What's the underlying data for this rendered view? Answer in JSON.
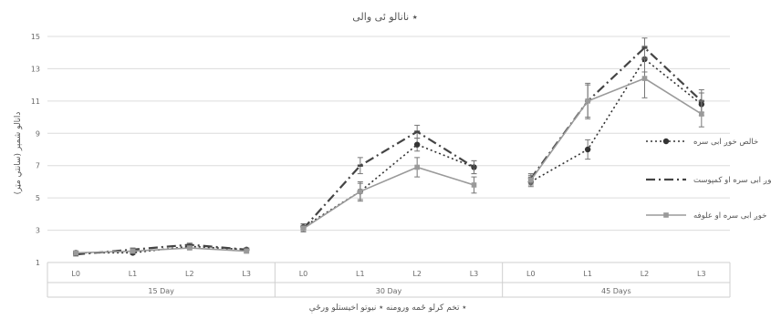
{
  "chart_data": {
    "type": "line",
    "title": "٭ نانالو ئی والی",
    "xlabel": "٭ تخم کرلو ځمه ورومنه ٭ نیوتو اخیستلو ورځې",
    "ylabel": "دانالو شمېر (سانتي مټر)",
    "ylim": [
      1,
      15
    ],
    "yticks": [
      1,
      3,
      5,
      7,
      9,
      11,
      13,
      15
    ],
    "grid": true,
    "legend_position": "right",
    "groups": [
      {
        "label": "15 Day",
        "categories": [
          "L0",
          "L1",
          "L2",
          "L3"
        ]
      },
      {
        "label": "30 Day",
        "categories": [
          "L0",
          "L1",
          "L2",
          "L3"
        ]
      },
      {
        "label": "45 Days",
        "categories": [
          "L0",
          "L1",
          "L2",
          "L3"
        ]
      }
    ],
    "series": [
      {
        "name": "خالص خوږ ابی سره",
        "style": "dotted",
        "marker": "circle",
        "color": "#333333",
        "values": [
          [
            1.6,
            1.6,
            2.0,
            1.8
          ],
          [
            3.2,
            5.4,
            8.3,
            6.9
          ],
          [
            6.0,
            8.0,
            13.6,
            10.8
          ]
        ],
        "errors": [
          [
            0.1,
            0.1,
            0.1,
            0.1
          ],
          [
            0.2,
            0.5,
            0.4,
            0.4
          ],
          [
            0.3,
            0.6,
            0.8,
            0.7
          ]
        ]
      },
      {
        "name": "خوږ ابی سره او کمپوست",
        "style": "dashdot",
        "marker": "dash",
        "color": "#444444",
        "values": [
          [
            1.5,
            1.8,
            2.1,
            1.8
          ],
          [
            3.1,
            7.0,
            9.1,
            6.9
          ],
          [
            6.2,
            11.0,
            14.3,
            11.0
          ]
        ],
        "errors": [
          [
            0.1,
            0.1,
            0.1,
            0.1
          ],
          [
            0.2,
            0.5,
            0.4,
            0.4
          ],
          [
            0.3,
            1.0,
            0.6,
            0.7
          ]
        ]
      },
      {
        "name": "خوږ ابی سره او علوفه",
        "style": "solid",
        "marker": "square",
        "color": "#9a9a9a",
        "values": [
          [
            1.6,
            1.7,
            1.9,
            1.7
          ],
          [
            3.1,
            5.4,
            6.9,
            5.8
          ],
          [
            6.1,
            11.0,
            12.4,
            10.2
          ]
        ],
        "errors": [
          [
            0.1,
            0.1,
            0.1,
            0.1
          ],
          [
            0.2,
            0.6,
            0.6,
            0.5
          ],
          [
            0.3,
            1.1,
            1.2,
            0.8
          ]
        ]
      }
    ]
  }
}
